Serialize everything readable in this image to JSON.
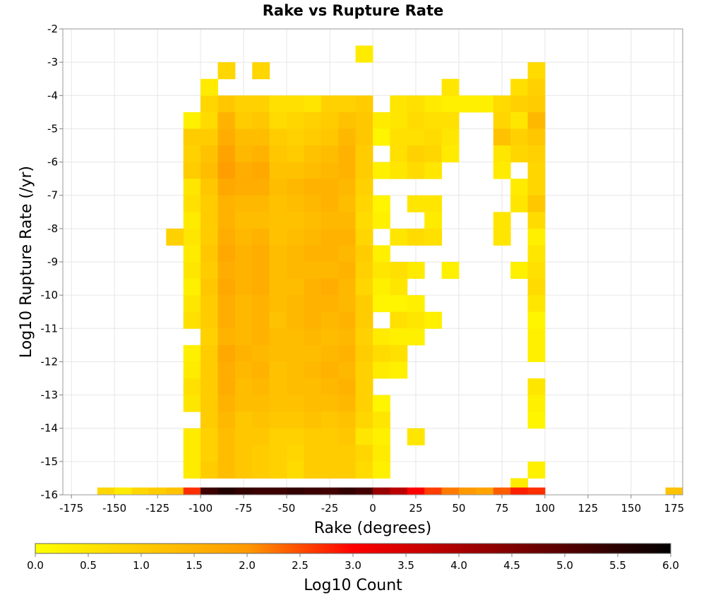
{
  "chart_data": {
    "type": "heatmap",
    "title": "Rake vs Rupture Rate",
    "xlabel": "Rake (degrees)",
    "ylabel": "Log10 Rupture Rate (/yr)",
    "xlim": [
      -180,
      180
    ],
    "ylim": [
      -16,
      -2
    ],
    "x_ticks": [
      "-175",
      "-150",
      "-125",
      "-100",
      "-75",
      "-50",
      "-25",
      "0",
      "25",
      "50",
      "75",
      "100",
      "125",
      "150",
      "175"
    ],
    "y_ticks": [
      "-2",
      "-3",
      "-4",
      "-5",
      "-6",
      "-7",
      "-8",
      "-9",
      "-10",
      "-11",
      "-12",
      "-13",
      "-14",
      "-15",
      "-16"
    ],
    "grid": true,
    "bin_width_x": 10,
    "bin_height_y": 0.5,
    "x_bin_starts": [
      -110,
      -100,
      -90,
      -80,
      -70,
      -60,
      -50,
      -40,
      -30,
      -20,
      -10,
      0,
      10,
      20,
      30,
      40
    ],
    "y_bin_bottoms": [
      -4.5,
      -5,
      -5.5,
      -6,
      -6.5,
      -7,
      -7.5,
      -8,
      -8.5,
      -9,
      -9.5,
      -10,
      -10.5,
      -11,
      -11.5,
      -12,
      -12.5,
      -13,
      -13.5,
      -14,
      -14.5,
      -15,
      -15.5
    ],
    "z_grid": [
      [
        null,
        0.8,
        1.1,
        0.9,
        0.9,
        0.6,
        0.6,
        0.5,
        0.9,
        0.9,
        1.0,
        null,
        0.5,
        0.6,
        0.4,
        0.3
      ],
      [
        0.3,
        0.7,
        1.5,
        1.0,
        1.1,
        0.7,
        0.8,
        0.9,
        1.0,
        1.2,
        1.1,
        0.4,
        0.5,
        0.7,
        0.6,
        0.6
      ],
      [
        1.0,
        1.0,
        1.6,
        1.3,
        1.3,
        1.0,
        0.9,
        1.0,
        1.1,
        1.4,
        1.1,
        0.2,
        0.6,
        0.6,
        0.7,
        0.5
      ],
      [
        0.9,
        1.2,
        1.8,
        1.4,
        1.5,
        1.1,
        1.0,
        1.2,
        1.3,
        1.5,
        1.0,
        null,
        0.6,
        0.9,
        0.8,
        0.4
      ],
      [
        1.0,
        1.3,
        1.9,
        1.6,
        1.7,
        1.2,
        1.2,
        1.3,
        1.4,
        1.5,
        1.0,
        0.3,
        0.5,
        0.7,
        0.5,
        null
      ],
      [
        0.5,
        1.1,
        1.7,
        1.6,
        1.6,
        1.3,
        1.4,
        1.5,
        1.5,
        1.4,
        0.9,
        null,
        null,
        null,
        null,
        null
      ],
      [
        0.6,
        1.0,
        1.5,
        1.4,
        1.4,
        1.2,
        1.3,
        1.4,
        1.5,
        1.3,
        0.8,
        0.2,
        null,
        0.5,
        0.5,
        null
      ],
      [
        0.4,
        1.0,
        1.5,
        1.3,
        1.3,
        1.2,
        1.2,
        1.3,
        1.4,
        1.4,
        0.7,
        0.3,
        null,
        null,
        0.4,
        null
      ],
      [
        0.5,
        1.0,
        1.6,
        1.4,
        1.5,
        1.2,
        1.3,
        1.4,
        1.5,
        1.5,
        0.8,
        null,
        0.5,
        0.7,
        0.6,
        null
      ],
      [
        0.4,
        1.1,
        1.7,
        1.5,
        1.6,
        1.3,
        1.4,
        1.5,
        1.5,
        1.4,
        1.0,
        0.3,
        null,
        null,
        null,
        null
      ],
      [
        0.5,
        1.0,
        1.6,
        1.5,
        1.6,
        1.3,
        1.4,
        1.4,
        1.4,
        1.5,
        0.9,
        0.5,
        0.6,
        0.4,
        null,
        null
      ],
      [
        0.3,
        1.1,
        1.7,
        1.5,
        1.6,
        1.3,
        1.3,
        1.5,
        1.6,
        1.4,
        0.8,
        0.3,
        0.5,
        null,
        null,
        null
      ],
      [
        0.5,
        1.0,
        1.6,
        1.4,
        1.5,
        1.3,
        1.4,
        1.5,
        1.5,
        1.4,
        1.0,
        0.2,
        0.2,
        0.3,
        null,
        null
      ],
      [
        0.6,
        1.0,
        1.6,
        1.4,
        1.5,
        1.2,
        1.4,
        1.5,
        1.4,
        1.5,
        1.0,
        null,
        0.6,
        0.5,
        0.3,
        null
      ],
      [
        null,
        0.9,
        1.5,
        1.4,
        1.5,
        1.3,
        1.3,
        1.4,
        1.3,
        1.4,
        0.9,
        0.4,
        0.3,
        0.3,
        null,
        null
      ],
      [
        0.3,
        1.0,
        1.7,
        1.5,
        1.4,
        1.3,
        1.3,
        1.3,
        1.4,
        1.5,
        1.0,
        0.7,
        0.6,
        null,
        null,
        null
      ],
      [
        0.4,
        1.0,
        1.6,
        1.4,
        1.5,
        1.2,
        1.3,
        1.4,
        1.5,
        1.4,
        0.9,
        0.4,
        0.3,
        null,
        null,
        null
      ],
      [
        0.6,
        1.0,
        1.6,
        1.3,
        1.4,
        1.2,
        1.3,
        1.3,
        1.4,
        1.5,
        0.9,
        null,
        null,
        null,
        null,
        null
      ],
      [
        0.5,
        1.0,
        1.5,
        1.3,
        1.3,
        1.2,
        1.2,
        1.3,
        1.3,
        1.4,
        0.9,
        0.2,
        null,
        null,
        null,
        null
      ],
      [
        null,
        1.0,
        1.4,
        1.1,
        1.2,
        1.1,
        1.1,
        1.2,
        1.1,
        1.2,
        0.8,
        0.5,
        null,
        null,
        null,
        null
      ],
      [
        0.4,
        0.9,
        1.3,
        1.1,
        1.1,
        0.9,
        0.9,
        1.0,
        1.0,
        1.1,
        0.5,
        0.3,
        null,
        0.5,
        null,
        null
      ],
      [
        0.4,
        0.9,
        1.3,
        1.1,
        1.0,
        0.9,
        0.8,
        1.0,
        1.0,
        1.0,
        0.8,
        0.4,
        null,
        null,
        null,
        null
      ],
      [
        0.4,
        1.0,
        1.3,
        1.1,
        1.0,
        0.9,
        0.7,
        1.0,
        1.0,
        1.0,
        0.7,
        0.3,
        null,
        null,
        null,
        null
      ]
    ],
    "extra_cells": [
      {
        "x": -90,
        "y": -3.5,
        "z": 0.8
      },
      {
        "x": -70,
        "y": -3.5,
        "z": 0.8
      },
      {
        "x": -10,
        "y": -3,
        "z": 0.4
      },
      {
        "x": -100,
        "y": -4,
        "z": 0.4
      },
      {
        "x": 40,
        "y": -4,
        "z": 0.5
      },
      {
        "x": 50,
        "y": -4.5,
        "z": 0.3
      },
      {
        "x": 60,
        "y": -4.5,
        "z": 0.3
      },
      {
        "x": 80,
        "y": -4,
        "z": 0.6
      },
      {
        "x": 90,
        "y": -3.5,
        "z": 0.7
      },
      {
        "x": -120,
        "y": -8.5,
        "z": 0.9
      },
      {
        "x": 40,
        "y": -9.5,
        "z": 0.3
      }
    ],
    "extra_columns": [
      {
        "x": 70,
        "y_bottoms": [
          -4.5,
          -5,
          -5.5,
          -6,
          -6.5,
          -8,
          -8.5
        ],
        "z": [
          0.7,
          0.8,
          1.2,
          0.5,
          0.4,
          0.5,
          0.5
        ]
      },
      {
        "x": 80,
        "y_bottoms": [
          -4.5,
          -5,
          -5.5,
          -6,
          -7,
          -7.5,
          -9.5,
          -16
        ],
        "z": [
          0.9,
          0.5,
          0.9,
          0.8,
          0.4,
          0.5,
          0.3,
          0.4
        ]
      },
      {
        "x": 90,
        "y_bottoms": [
          -4,
          -4.5,
          -5,
          -5.5,
          -6,
          -6.5,
          -7,
          -7.5,
          -8,
          -8.5,
          -9,
          -9.5,
          -10,
          -10.5,
          -11,
          -11.5,
          -12,
          -13,
          -13.5,
          -14,
          -15.5
        ],
        "z": [
          0.9,
          1.0,
          1.4,
          1.1,
          0.9,
          0.8,
          0.8,
          1.1,
          0.7,
          0.3,
          0.5,
          0.6,
          0.7,
          0.5,
          0.2,
          0.3,
          0.3,
          0.5,
          0.3,
          0.2,
          0.3
        ]
      }
    ],
    "bottom_row": {
      "y_bottom": -16,
      "x_bin_starts": [
        -160,
        -150,
        -140,
        -130,
        -120,
        -110,
        -100,
        -90,
        -80,
        -70,
        -60,
        -50,
        -40,
        -30,
        -20,
        -10,
        0,
        10,
        20,
        30,
        40,
        50,
        60,
        70,
        80,
        90,
        170
      ],
      "z": [
        0.8,
        0.4,
        0.8,
        1.0,
        1.2,
        2.7,
        5.3,
        5.6,
        5.4,
        5.3,
        5.3,
        5.4,
        5.3,
        5.2,
        5.4,
        5.2,
        4.2,
        3.8,
        3.0,
        2.6,
        2.2,
        2.0,
        1.8,
        2.4,
        2.8,
        2.7,
        1.2
      ]
    },
    "colorbar": {
      "label": "Log10 Count",
      "range": [
        0,
        6
      ],
      "ticks": [
        "0.0",
        "0.5",
        "1.0",
        "1.5",
        "2.0",
        "2.5",
        "3.0",
        "3.5",
        "4.0",
        "4.5",
        "5.0",
        "5.5",
        "6.0"
      ],
      "colors": [
        "#ffff00",
        "#ff9900",
        "#ff0000",
        "#000000"
      ],
      "color_stops": [
        0,
        2,
        3,
        6
      ]
    }
  }
}
